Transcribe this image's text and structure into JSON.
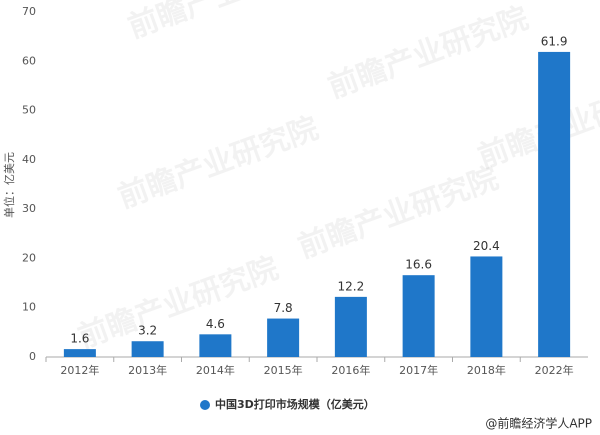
{
  "chart_data": {
    "type": "bar",
    "y_axis_label": "单位：亿美元",
    "categories": [
      "2012年",
      "2013年",
      "2014年",
      "2015年",
      "2016年",
      "2017年",
      "2018年",
      "2022年"
    ],
    "values": [
      1.6,
      3.2,
      4.6,
      7.8,
      12.2,
      16.6,
      20.4,
      61.9
    ],
    "color": "#1f77c9",
    "legend_label": "中国3D打印市场规模（亿美元）",
    "ylim": [
      0,
      70
    ],
    "yticks": [
      0,
      10,
      20,
      30,
      40,
      50,
      60,
      70
    ],
    "grid": false,
    "source": "@前瞻经济学人APP",
    "watermark": "前瞻产业研究院"
  }
}
